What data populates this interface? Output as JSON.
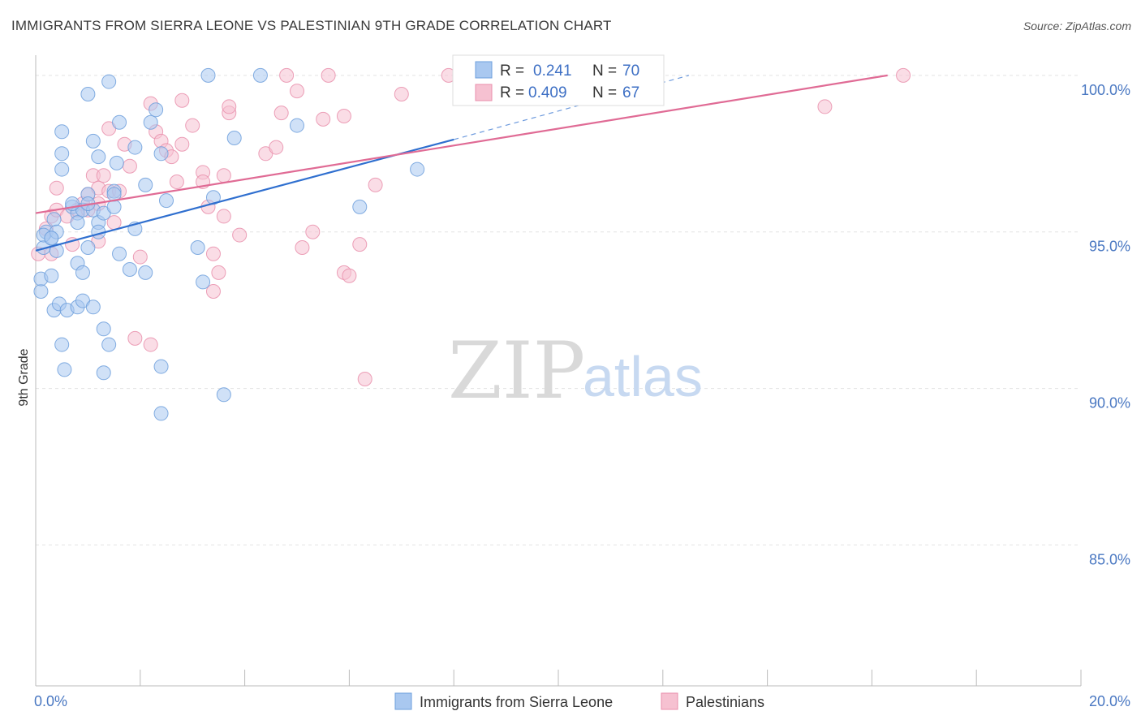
{
  "title": "IMMIGRANTS FROM SIERRA LEONE VS PALESTINIAN 9TH GRADE CORRELATION CHART",
  "source": "Source: ZipAtlas.com",
  "watermark": {
    "zip": "ZIP",
    "atlas": "atlas"
  },
  "colors": {
    "blue_fill": "#a9c8f0",
    "blue_stroke": "#6d9fdc",
    "blue_line": "#2f6fcf",
    "pink_fill": "#f6c1d1",
    "pink_stroke": "#e98fac",
    "pink_line": "#e06b95",
    "grid": "#e3e3e3",
    "tick_text": "#4a78c2"
  },
  "legend": {
    "rows": [
      {
        "r_label": "R =",
        "r_value": "0.241",
        "n_label": "N =",
        "n_value": "70"
      },
      {
        "r_label": "R =",
        "r_value": "0.409",
        "n_label": "N =",
        "n_value": "67"
      }
    ]
  },
  "bottom_legend": [
    "Immigrants from Sierra Leone",
    "Palestinians"
  ],
  "chart_data": {
    "type": "scatter",
    "xlabel": "",
    "ylabel": "9th Grade",
    "xlim": [
      0,
      20
    ],
    "ylim": [
      80.5,
      100.8
    ],
    "x_tick_labels": [
      {
        "value": 0,
        "label": "0.0%"
      },
      {
        "value": 20,
        "label": "20.0%"
      }
    ],
    "y_tick_labels": [
      {
        "value": 100,
        "label": "100.0%"
      },
      {
        "value": 95,
        "label": "95.0%"
      },
      {
        "value": 90,
        "label": "90.0%"
      },
      {
        "value": 85,
        "label": "85.0%"
      }
    ],
    "grid": true,
    "legend_placement": "top-center",
    "series": [
      {
        "name": "Immigrants from Sierra Leone",
        "r": 0.241,
        "n": 70,
        "trend": {
          "x": [
            0,
            8
          ],
          "y": [
            94.4,
            97.95
          ],
          "dashed_to": [
            12.5,
            100
          ]
        },
        "points": [
          [
            0.1,
            93.1
          ],
          [
            0.1,
            93.5
          ],
          [
            0.15,
            94.5
          ],
          [
            0.2,
            95.0
          ],
          [
            0.3,
            94.8
          ],
          [
            0.15,
            94.9
          ],
          [
            0.35,
            95.4
          ],
          [
            0.4,
            94.4
          ],
          [
            0.3,
            93.6
          ],
          [
            0.4,
            95.0
          ],
          [
            0.35,
            92.5
          ],
          [
            0.45,
            92.7
          ],
          [
            0.6,
            92.5
          ],
          [
            0.5,
            91.4
          ],
          [
            0.8,
            92.6
          ],
          [
            0.55,
            90.6
          ],
          [
            0.9,
            92.8
          ],
          [
            1.1,
            92.6
          ],
          [
            1.3,
            91.9
          ],
          [
            1.4,
            91.4
          ],
          [
            1.3,
            90.5
          ],
          [
            0.7,
            95.8
          ],
          [
            0.8,
            95.6
          ],
          [
            0.9,
            95.7
          ],
          [
            0.8,
            95.3
          ],
          [
            1.1,
            95.7
          ],
          [
            1.2,
            95.3
          ],
          [
            1.2,
            95.0
          ],
          [
            1.3,
            95.6
          ],
          [
            1.0,
            94.5
          ],
          [
            0.8,
            94.0
          ],
          [
            0.9,
            93.7
          ],
          [
            1.5,
            95.8
          ],
          [
            1.6,
            94.3
          ],
          [
            1.9,
            95.1
          ],
          [
            1.8,
            93.8
          ],
          [
            2.1,
            93.7
          ],
          [
            2.1,
            96.5
          ],
          [
            2.5,
            96.0
          ],
          [
            2.4,
            97.5
          ],
          [
            2.2,
            98.5
          ],
          [
            2.3,
            98.9
          ],
          [
            0.5,
            98.2
          ],
          [
            0.5,
            97.5
          ],
          [
            0.5,
            97.0
          ],
          [
            1.1,
            97.9
          ],
          [
            1.2,
            97.4
          ],
          [
            1.6,
            98.5
          ],
          [
            1.55,
            97.2
          ],
          [
            1.9,
            97.7
          ],
          [
            1.5,
            96.3
          ],
          [
            1.0,
            96.2
          ],
          [
            1.0,
            95.9
          ],
          [
            0.7,
            95.9
          ],
          [
            1.0,
            99.4
          ],
          [
            1.4,
            99.8
          ],
          [
            3.3,
            100.0
          ],
          [
            4.3,
            100.0
          ],
          [
            3.8,
            98.0
          ],
          [
            3.4,
            96.1
          ],
          [
            3.1,
            94.5
          ],
          [
            3.2,
            93.4
          ],
          [
            5.0,
            98.4
          ],
          [
            7.3,
            97.0
          ],
          [
            6.2,
            95.8
          ],
          [
            2.4,
            90.7
          ],
          [
            3.6,
            89.8
          ],
          [
            2.4,
            89.2
          ],
          [
            0.3,
            94.8
          ],
          [
            1.5,
            96.2
          ]
        ]
      },
      {
        "name": "Palestinians",
        "r": 0.409,
        "n": 67,
        "trend": {
          "x": [
            0,
            16.3
          ],
          "y": [
            95.6,
            100.0
          ]
        },
        "points": [
          [
            0.05,
            94.3
          ],
          [
            0.2,
            95.1
          ],
          [
            0.3,
            95.5
          ],
          [
            0.4,
            95.7
          ],
          [
            0.3,
            94.3
          ],
          [
            0.4,
            96.4
          ],
          [
            0.6,
            95.5
          ],
          [
            0.7,
            94.6
          ],
          [
            0.8,
            95.7
          ],
          [
            0.9,
            95.9
          ],
          [
            1.0,
            95.7
          ],
          [
            1.1,
            96.8
          ],
          [
            1.0,
            96.2
          ],
          [
            1.2,
            96.4
          ],
          [
            1.3,
            96.8
          ],
          [
            1.4,
            96.3
          ],
          [
            1.6,
            96.3
          ],
          [
            1.7,
            97.8
          ],
          [
            1.8,
            97.1
          ],
          [
            1.5,
            95.3
          ],
          [
            1.2,
            94.7
          ],
          [
            1.4,
            98.3
          ],
          [
            2.0,
            94.2
          ],
          [
            2.2,
            91.4
          ],
          [
            1.9,
            91.6
          ],
          [
            2.3,
            98.2
          ],
          [
            2.2,
            99.1
          ],
          [
            2.4,
            97.9
          ],
          [
            2.5,
            97.6
          ],
          [
            2.6,
            97.4
          ],
          [
            2.7,
            96.6
          ],
          [
            2.8,
            97.8
          ],
          [
            2.8,
            99.2
          ],
          [
            3.0,
            98.4
          ],
          [
            3.2,
            96.9
          ],
          [
            3.2,
            96.6
          ],
          [
            3.3,
            95.8
          ],
          [
            3.4,
            94.3
          ],
          [
            3.5,
            93.7
          ],
          [
            3.4,
            93.1
          ],
          [
            3.6,
            96.8
          ],
          [
            3.6,
            95.5
          ],
          [
            3.7,
            98.8
          ],
          [
            3.7,
            99.0
          ],
          [
            3.9,
            94.9
          ],
          [
            4.4,
            97.5
          ],
          [
            4.6,
            97.7
          ],
          [
            4.7,
            98.8
          ],
          [
            4.8,
            100.0
          ],
          [
            5.0,
            99.5
          ],
          [
            5.1,
            94.5
          ],
          [
            5.3,
            95.0
          ],
          [
            5.5,
            98.6
          ],
          [
            5.6,
            100.0
          ],
          [
            5.9,
            98.7
          ],
          [
            5.9,
            93.7
          ],
          [
            6.0,
            93.6
          ],
          [
            6.2,
            94.6
          ],
          [
            6.3,
            90.3
          ],
          [
            6.5,
            96.5
          ],
          [
            7.0,
            99.4
          ],
          [
            7.9,
            100.0
          ],
          [
            9.0,
            100.0
          ],
          [
            11.0,
            100.0
          ],
          [
            15.1,
            99.0
          ],
          [
            16.6,
            100.0
          ],
          [
            1.2,
            95.9
          ]
        ]
      }
    ]
  }
}
